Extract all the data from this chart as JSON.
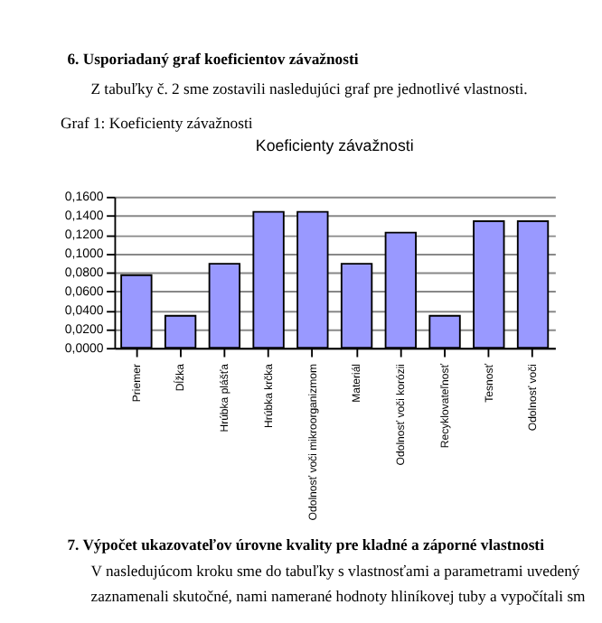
{
  "chart_data": {
    "type": "bar",
    "title": "Koeficienty závažnosti",
    "categories": [
      "Priemer",
      "Dĺžka",
      "Hrúbka plášťa",
      "Hrúbka krčka",
      "Odolnosť voči mikroorganizmom",
      "Materiál",
      "Odolnosť voči korózii",
      "Recyklovateľnosť",
      "Tesnosť",
      "Odolnosť voči"
    ],
    "values": [
      0.077,
      0.034,
      0.089,
      0.144,
      0.144,
      0.089,
      0.122,
      0.034,
      0.134,
      0.134
    ],
    "color": "#9999ff",
    "ylim": [
      0,
      0.16
    ],
    "yticks": [
      {
        "value": 0,
        "label": "0,0000"
      },
      {
        "value": 0.02,
        "label": "0,0200"
      },
      {
        "value": 0.04,
        "label": "0,0400"
      },
      {
        "value": 0.06,
        "label": "0,0600"
      },
      {
        "value": 0.08,
        "label": "0,0800"
      },
      {
        "value": 0.1,
        "label": "0,1000"
      },
      {
        "value": 0.12,
        "label": "0,1200"
      },
      {
        "value": 0.14,
        "label": "0,1400"
      },
      {
        "value": 0.16,
        "label": "0,1600"
      }
    ],
    "grid": "y",
    "annotations": [
      "6. Usporiadaný graf koeficientov závažnosti",
      "Z tabuľky č. 2 sme zostavili nasledujúci graf pre jednotlivé vlastnosti.",
      "Graf 1: Koeficienty závažnosti",
      "7. Výpočet ukazovateľov úrovne kvality pre kladné a záporné vlastnosti",
      "V nasledujúcom kroku sme do tabuľky s vlastnosťami a parametrami uvedený",
      "zaznamenali skutočné, nami namerané hodnoty hliníkovej tuby a vypočítali sm"
    ]
  }
}
